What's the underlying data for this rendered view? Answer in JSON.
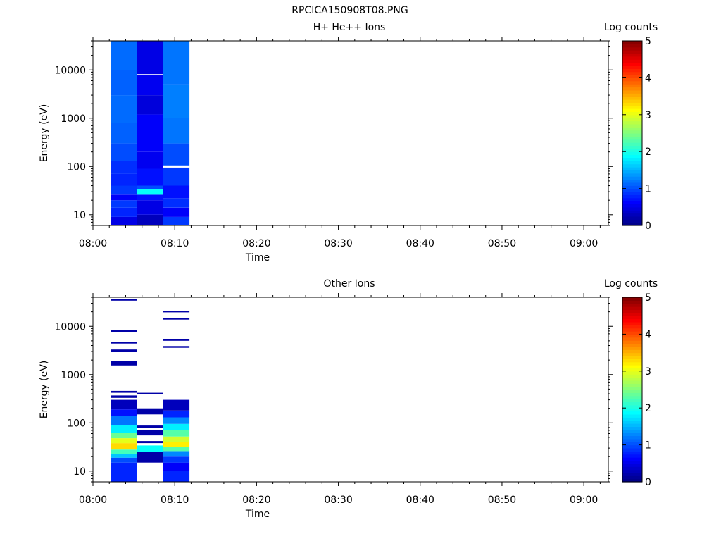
{
  "figure_title": "RPCICA150908T08.PNG",
  "chart_data": [
    {
      "type": "heatmap",
      "title": "H+ He++ Ions",
      "xlabel": "Time",
      "ylabel": "Energy (eV)",
      "colorbar_label": "Log counts",
      "colorbar_ticks": [
        "0",
        "1",
        "2",
        "3",
        "4",
        "5"
      ],
      "colorbar_range": [
        0,
        5
      ],
      "colormap": [
        "#00007f",
        "#0000ff",
        "#007fff",
        "#00ffff",
        "#7fff7f",
        "#ffff00",
        "#ff7f00",
        "#ff0000",
        "#7f0000"
      ],
      "x_ticks": [
        "08:00",
        "08:10",
        "08:20",
        "08:30",
        "08:40",
        "08:50",
        "09:00"
      ],
      "x_range_minutes": [
        0,
        63
      ],
      "y_scale": "log",
      "y_range": [
        6,
        40000
      ],
      "y_ticks": [
        "10",
        "100",
        "1000",
        "10000"
      ],
      "columns": [
        {
          "start_min": 2.2,
          "end_min": 5.4,
          "bins": [
            {
              "e_lo": 6,
              "e_hi": 9,
              "value": 0.5
            },
            {
              "e_lo": 9,
              "e_hi": 14,
              "value": 0.8
            },
            {
              "e_lo": 14,
              "e_hi": 20,
              "value": 0.9
            },
            {
              "e_lo": 20,
              "e_hi": 26,
              "value": 0.6
            },
            {
              "e_lo": 26,
              "e_hi": 40,
              "value": 0.9
            },
            {
              "e_lo": 40,
              "e_hi": 70,
              "value": 0.8
            },
            {
              "e_lo": 70,
              "e_hi": 130,
              "value": 0.85
            },
            {
              "e_lo": 130,
              "e_hi": 300,
              "value": 1.0
            },
            {
              "e_lo": 300,
              "e_hi": 800,
              "value": 1.1
            },
            {
              "e_lo": 800,
              "e_hi": 3000,
              "value": 1.15
            },
            {
              "e_lo": 3000,
              "e_hi": 10000,
              "value": 1.1
            },
            {
              "e_lo": 10000,
              "e_hi": 40000,
              "value": 1.15
            }
          ]
        },
        {
          "start_min": 5.4,
          "end_min": 8.6,
          "bins": [
            {
              "e_lo": 6,
              "e_hi": 10,
              "value": 0.3
            },
            {
              "e_lo": 10,
              "e_hi": 20,
              "value": 0.5
            },
            {
              "e_lo": 20,
              "e_hi": 26,
              "value": 0.7
            },
            {
              "e_lo": 26,
              "e_hi": 34,
              "value": 1.9
            },
            {
              "e_lo": 34,
              "e_hi": 40,
              "value": 1.0
            },
            {
              "e_lo": 40,
              "e_hi": 90,
              "value": 0.7
            },
            {
              "e_lo": 90,
              "e_hi": 200,
              "value": 0.55
            },
            {
              "e_lo": 200,
              "e_hi": 1200,
              "value": 0.6
            },
            {
              "e_lo": 1200,
              "e_hi": 3000,
              "value": 0.45
            },
            {
              "e_lo": 3000,
              "e_hi": 7800,
              "value": 0.55
            },
            {
              "e_lo": 7800,
              "e_hi": 8200,
              "value": -1
            },
            {
              "e_lo": 8200,
              "e_hi": 40000,
              "value": 0.5
            }
          ]
        },
        {
          "start_min": 8.6,
          "end_min": 11.8,
          "bins": [
            {
              "e_lo": 6,
              "e_hi": 9,
              "value": 0.9
            },
            {
              "e_lo": 9,
              "e_hi": 14,
              "value": 0.6
            },
            {
              "e_lo": 14,
              "e_hi": 22,
              "value": 0.85
            },
            {
              "e_lo": 22,
              "e_hi": 40,
              "value": 0.7
            },
            {
              "e_lo": 40,
              "e_hi": 95,
              "value": 0.9
            },
            {
              "e_lo": 95,
              "e_hi": 105,
              "value": -1
            },
            {
              "e_lo": 105,
              "e_hi": 300,
              "value": 1.0
            },
            {
              "e_lo": 300,
              "e_hi": 1000,
              "value": 1.2
            },
            {
              "e_lo": 1000,
              "e_hi": 5000,
              "value": 1.25
            },
            {
              "e_lo": 5000,
              "e_hi": 40000,
              "value": 1.2
            }
          ]
        }
      ]
    },
    {
      "type": "heatmap",
      "title": "Other Ions",
      "xlabel": "Time",
      "ylabel": "Energy (eV)",
      "colorbar_label": "Log counts",
      "colorbar_ticks": [
        "0",
        "1",
        "2",
        "3",
        "4",
        "5"
      ],
      "colorbar_range": [
        0,
        5
      ],
      "colormap": [
        "#00007f",
        "#0000ff",
        "#007fff",
        "#00ffff",
        "#7fff7f",
        "#ffff00",
        "#ff7f00",
        "#ff0000",
        "#7f0000"
      ],
      "x_ticks": [
        "08:00",
        "08:10",
        "08:20",
        "08:30",
        "08:40",
        "08:50",
        "09:00"
      ],
      "x_range_minutes": [
        0,
        63
      ],
      "y_scale": "log",
      "y_range": [
        6,
        40000
      ],
      "y_ticks": [
        "10",
        "100",
        "1000",
        "10000"
      ],
      "columns": [
        {
          "start_min": 2.2,
          "end_min": 5.4,
          "bins": [
            {
              "e_lo": 6,
              "e_hi": 15,
              "value": 0.8
            },
            {
              "e_lo": 15,
              "e_hi": 19,
              "value": 1.0
            },
            {
              "e_lo": 19,
              "e_hi": 23,
              "value": 1.6
            },
            {
              "e_lo": 23,
              "e_hi": 28,
              "value": 2.2
            },
            {
              "e_lo": 28,
              "e_hi": 38,
              "value": 3.3
            },
            {
              "e_lo": 38,
              "e_hi": 48,
              "value": 3.0
            },
            {
              "e_lo": 48,
              "e_hi": 62,
              "value": 2.4
            },
            {
              "e_lo": 62,
              "e_hi": 90,
              "value": 1.8
            },
            {
              "e_lo": 90,
              "e_hi": 140,
              "value": 1.2
            },
            {
              "e_lo": 140,
              "e_hi": 190,
              "value": 0.7
            },
            {
              "e_lo": 190,
              "e_hi": 300,
              "value": 0.3
            },
            {
              "e_lo": 330,
              "e_hi": 370,
              "value": 0.2
            },
            {
              "e_lo": 420,
              "e_hi": 460,
              "value": 0.2
            },
            {
              "e_lo": 1550,
              "e_hi": 1900,
              "value": 0.2
            },
            {
              "e_lo": 2900,
              "e_hi": 3300,
              "value": 0.2
            },
            {
              "e_lo": 4400,
              "e_hi": 4800,
              "value": 0.2
            },
            {
              "e_lo": 7700,
              "e_hi": 8300,
              "value": 0.2
            },
            {
              "e_lo": 34000,
              "e_hi": 37000,
              "value": 0.2
            }
          ]
        },
        {
          "start_min": 5.4,
          "end_min": 8.6,
          "bins": [
            {
              "e_lo": 15,
              "e_hi": 25,
              "value": 0.2
            },
            {
              "e_lo": 25,
              "e_hi": 34,
              "value": 1.9
            },
            {
              "e_lo": 38,
              "e_hi": 42,
              "value": 0.2
            },
            {
              "e_lo": 55,
              "e_hi": 70,
              "value": 0.2
            },
            {
              "e_lo": 78,
              "e_hi": 88,
              "value": 0.2
            },
            {
              "e_lo": 150,
              "e_hi": 200,
              "value": 0.2
            },
            {
              "e_lo": 390,
              "e_hi": 420,
              "value": 0.2
            }
          ]
        },
        {
          "start_min": 8.6,
          "end_min": 11.8,
          "bins": [
            {
              "e_lo": 6,
              "e_hi": 10,
              "value": 0.8
            },
            {
              "e_lo": 10,
              "e_hi": 15,
              "value": 0.6
            },
            {
              "e_lo": 15,
              "e_hi": 20,
              "value": 0.9
            },
            {
              "e_lo": 20,
              "e_hi": 26,
              "value": 1.3
            },
            {
              "e_lo": 26,
              "e_hi": 32,
              "value": 2.3
            },
            {
              "e_lo": 32,
              "e_hi": 40,
              "value": 3.2
            },
            {
              "e_lo": 40,
              "e_hi": 52,
              "value": 2.9
            },
            {
              "e_lo": 52,
              "e_hi": 70,
              "value": 2.3
            },
            {
              "e_lo": 70,
              "e_hi": 95,
              "value": 1.8
            },
            {
              "e_lo": 95,
              "e_hi": 130,
              "value": 1.3
            },
            {
              "e_lo": 130,
              "e_hi": 180,
              "value": 0.8
            },
            {
              "e_lo": 180,
              "e_hi": 300,
              "value": 0.3
            },
            {
              "e_lo": 3600,
              "e_hi": 3900,
              "value": 0.2
            },
            {
              "e_lo": 5000,
              "e_hi": 5500,
              "value": 0.2
            },
            {
              "e_lo": 13800,
              "e_hi": 14800,
              "value": 0.2
            },
            {
              "e_lo": 19500,
              "e_hi": 21000,
              "value": 0.2
            }
          ]
        }
      ]
    }
  ]
}
